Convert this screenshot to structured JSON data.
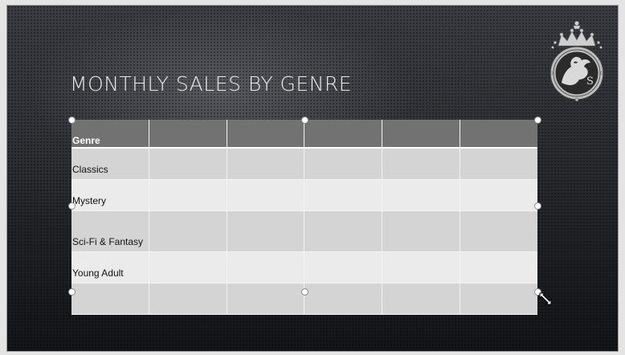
{
  "slide": {
    "title": "MONTHLY SALES BY GENRE"
  },
  "table": {
    "header": [
      "Genre",
      "",
      "",
      "",
      "",
      ""
    ],
    "rows": [
      [
        "Classics",
        "",
        "",
        "",
        "",
        ""
      ],
      [
        "Mystery",
        "",
        "",
        "",
        "",
        ""
      ],
      [
        "Sci-Fi & Fantasy",
        "",
        "",
        "",
        "",
        ""
      ],
      [
        "Young Adult",
        "",
        "",
        "",
        "",
        ""
      ],
      [
        "",
        "",
        "",
        "",
        "",
        ""
      ]
    ]
  },
  "logo": {
    "icon": "crowned-griffin-crest-icon",
    "letter": "S"
  },
  "colors": {
    "header_fill": "#727272",
    "row_dark": "#d4d4d4",
    "row_light": "#ebebeb",
    "title_text": "#e9e9e9"
  }
}
